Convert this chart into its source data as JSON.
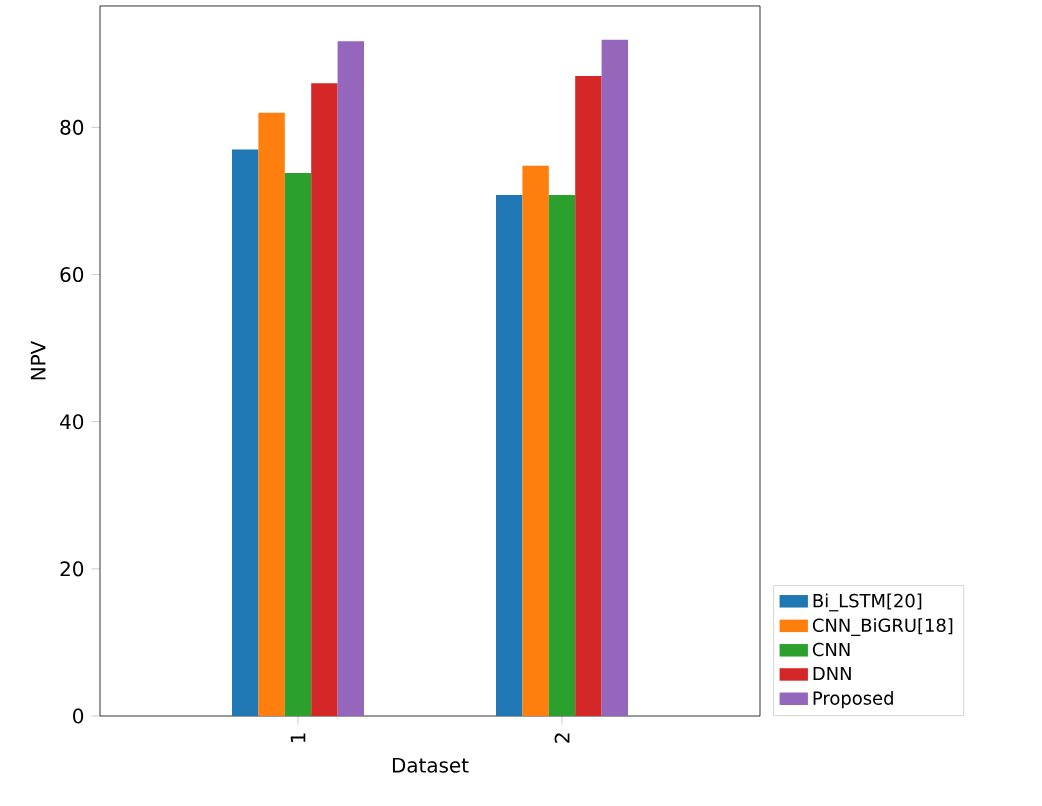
{
  "chart_data": {
    "type": "bar",
    "xlabel": "Dataset",
    "ylabel": "NPV",
    "categories": [
      "1",
      "2"
    ],
    "series": [
      {
        "name": "Bi_LSTM[20]",
        "color": "#1f77b4",
        "values": [
          77.0,
          70.8
        ]
      },
      {
        "name": "CNN_BiGRU[18]",
        "color": "#ff7f0e",
        "values": [
          82.0,
          74.8
        ]
      },
      {
        "name": "CNN",
        "color": "#2ca02c",
        "values": [
          73.8,
          70.8
        ]
      },
      {
        "name": "DNN",
        "color": "#d62728",
        "values": [
          86.0,
          87.0
        ]
      },
      {
        "name": "Proposed",
        "color": "#9467bd",
        "values": [
          91.7,
          91.9
        ]
      }
    ],
    "ylim": [
      0,
      96.5
    ],
    "yticks": [
      0,
      20,
      40,
      60,
      80
    ],
    "grid": false,
    "legend": "right"
  }
}
